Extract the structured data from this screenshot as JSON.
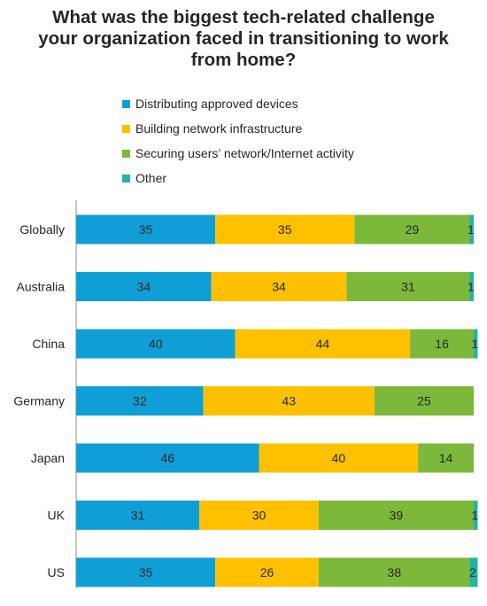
{
  "chart_data": {
    "type": "bar",
    "orientation": "horizontal",
    "stacked": true,
    "title_lines": [
      "What was the biggest tech-related challenge",
      "your organization faced in transitioning to work",
      "from home?"
    ],
    "categories": [
      "Globally",
      "Australia",
      "China",
      "Germany",
      "Japan",
      "UK",
      "US"
    ],
    "series": [
      {
        "name": "Distributing approved devices",
        "color": "#0F9ED5",
        "values": [
          35,
          34,
          40,
          32,
          46,
          31,
          35
        ]
      },
      {
        "name": "Building network infrastructure",
        "color": "#FFC000",
        "values": [
          35,
          34,
          44,
          43,
          40,
          30,
          26
        ]
      },
      {
        "name": "Securing users’ network/Internet activity",
        "color": "#7CB83A",
        "values": [
          29,
          31,
          16,
          25,
          14,
          39,
          38
        ]
      },
      {
        "name": "Other",
        "color": "#26B3A5",
        "values": [
          1,
          1,
          1,
          0,
          0,
          1,
          2
        ]
      }
    ],
    "data_labels": [
      [
        "35",
        "34",
        "40",
        "32",
        "46",
        "31",
        "35"
      ],
      [
        "35",
        "34",
        "44",
        "43",
        "40",
        "30",
        "26"
      ],
      [
        "29",
        "31",
        "16",
        "25",
        "14",
        "39",
        "38"
      ],
      [
        "1",
        "1",
        "1",
        "",
        "",
        "1",
        "2"
      ]
    ],
    "xlim": [
      0,
      100
    ],
    "legend_position": "top",
    "grid": false
  }
}
